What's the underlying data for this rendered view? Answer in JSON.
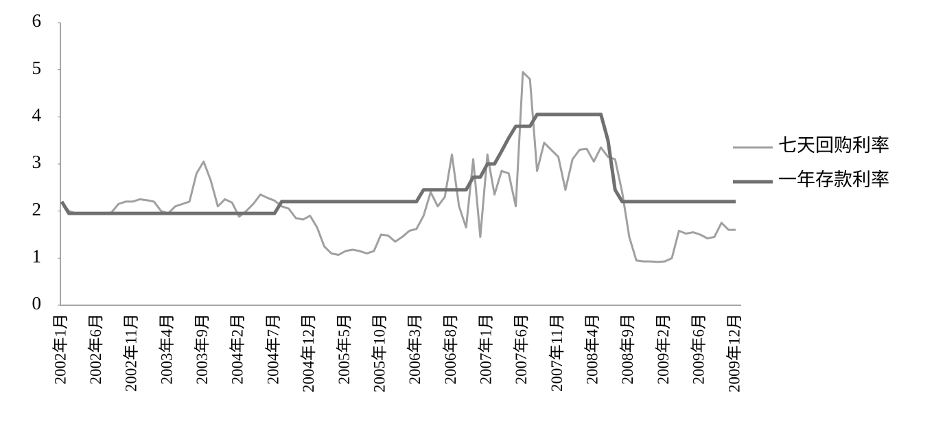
{
  "chart_data": {
    "type": "line",
    "categories": [
      "2002年1月",
      null,
      null,
      null,
      null,
      "2002年6月",
      null,
      null,
      null,
      null,
      "2002年11月",
      null,
      null,
      null,
      null,
      "2003年4月",
      null,
      null,
      null,
      null,
      "2003年9月",
      null,
      null,
      null,
      null,
      "2004年2月",
      null,
      null,
      null,
      null,
      "2004年7月",
      null,
      null,
      null,
      null,
      "2004年12月",
      null,
      null,
      null,
      null,
      "2005年5月",
      null,
      null,
      null,
      null,
      "2005年10月",
      null,
      null,
      null,
      null,
      "2006年3月",
      null,
      null,
      null,
      null,
      "2006年8月",
      null,
      null,
      null,
      null,
      "2007年1月",
      null,
      null,
      null,
      null,
      "2007年6月",
      null,
      null,
      null,
      null,
      "2007年11月",
      null,
      null,
      null,
      null,
      "2008年4月",
      null,
      null,
      null,
      null,
      "2008年9月",
      null,
      null,
      null,
      null,
      "2009年2月",
      null,
      null,
      null,
      null,
      "2009年6月",
      null,
      null,
      null,
      null,
      "2009年12月"
    ],
    "series": [
      {
        "name": "七天回购利率",
        "color": "#a0a0a0",
        "width": 3,
        "values": [
          2.2,
          2.0,
          1.95,
          1.95,
          1.95,
          1.95,
          1.95,
          1.97,
          2.15,
          2.2,
          2.2,
          2.25,
          2.23,
          2.2,
          2.0,
          1.95,
          2.1,
          2.15,
          2.2,
          2.8,
          3.05,
          2.65,
          2.1,
          2.25,
          2.18,
          1.88,
          2.0,
          2.15,
          2.35,
          2.28,
          2.22,
          2.1,
          2.05,
          1.85,
          1.82,
          1.9,
          1.65,
          1.25,
          1.1,
          1.07,
          1.15,
          1.18,
          1.15,
          1.1,
          1.15,
          1.5,
          1.48,
          1.35,
          1.45,
          1.58,
          1.62,
          1.9,
          2.4,
          2.1,
          2.3,
          3.2,
          2.1,
          1.65,
          3.1,
          1.45,
          3.2,
          2.35,
          2.85,
          2.8,
          2.1,
          4.95,
          4.8,
          2.85,
          3.45,
          3.3,
          3.15,
          2.45,
          3.1,
          3.3,
          3.32,
          3.05,
          3.35,
          3.15,
          3.1,
          2.4,
          1.45,
          0.95,
          0.93,
          0.93,
          0.92,
          0.93,
          1.0,
          1.58,
          1.52,
          1.55,
          1.5,
          1.42,
          1.45,
          1.75,
          1.6,
          1.6
        ]
      },
      {
        "name": "一年存款利率",
        "color": "#707070",
        "width": 5,
        "values": [
          2.2,
          1.95,
          1.95,
          1.95,
          1.95,
          1.95,
          1.95,
          1.95,
          1.95,
          1.95,
          1.95,
          1.95,
          1.95,
          1.95,
          1.95,
          1.95,
          1.95,
          1.95,
          1.95,
          1.95,
          1.95,
          1.95,
          1.95,
          1.95,
          1.95,
          1.95,
          1.95,
          1.95,
          1.95,
          1.95,
          1.95,
          2.2,
          2.2,
          2.2,
          2.2,
          2.2,
          2.2,
          2.2,
          2.2,
          2.2,
          2.2,
          2.2,
          2.2,
          2.2,
          2.2,
          2.2,
          2.2,
          2.2,
          2.2,
          2.2,
          2.2,
          2.45,
          2.45,
          2.45,
          2.45,
          2.45,
          2.45,
          2.45,
          2.72,
          2.72,
          3.0,
          3.0,
          3.27,
          3.55,
          3.8,
          3.8,
          3.8,
          4.05,
          4.05,
          4.05,
          4.05,
          4.05,
          4.05,
          4.05,
          4.05,
          4.05,
          4.05,
          3.5,
          2.45,
          2.2,
          2.2,
          2.2,
          2.2,
          2.2,
          2.2,
          2.2,
          2.2,
          2.2,
          2.2,
          2.2,
          2.2,
          2.2,
          2.2,
          2.2,
          2.2,
          2.2
        ]
      }
    ],
    "ylim": [
      0,
      6
    ],
    "yticks": [
      0,
      1,
      2,
      3,
      4,
      5,
      6
    ],
    "grid": false,
    "legend": "right"
  }
}
